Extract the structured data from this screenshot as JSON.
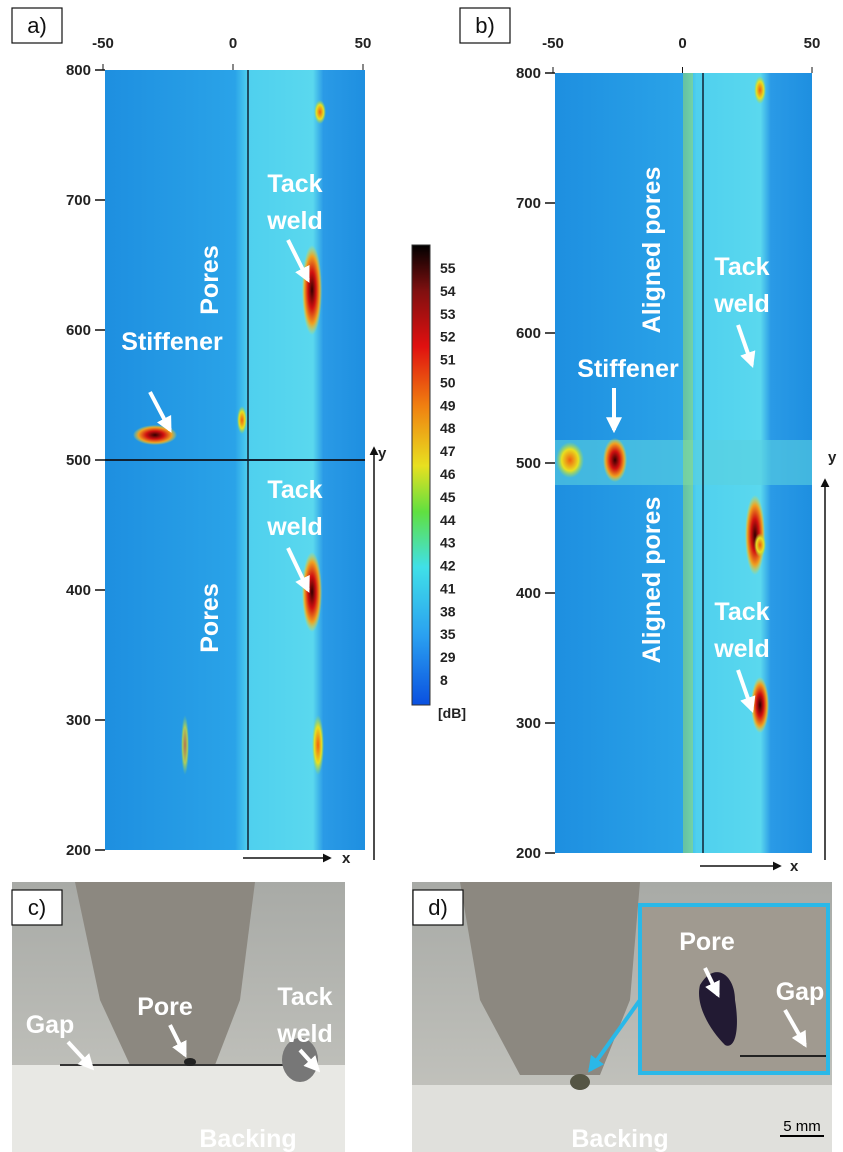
{
  "panels": [
    {
      "label": "a)",
      "x_ticks": [
        -50,
        0,
        50
      ],
      "y_ticks": [
        800,
        700,
        600,
        500,
        400,
        300,
        200
      ],
      "x_axis": "x",
      "y_axis": "y",
      "annotations": [
        {
          "lines": [
            "Tack",
            "weld"
          ]
        },
        {
          "lines": [
            "Pores"
          ]
        },
        {
          "lines": [
            "Stiffener"
          ]
        },
        {
          "lines": [
            "Tack",
            "weld"
          ]
        },
        {
          "lines": [
            "Pores"
          ]
        }
      ]
    },
    {
      "label": "b)",
      "x_ticks": [
        -50,
        0,
        50
      ],
      "y_ticks": [
        800,
        700,
        600,
        500,
        400,
        300,
        200
      ],
      "x_axis": "x",
      "y_axis": "y",
      "annotations": [
        {
          "lines": [
            "Aligned pores"
          ]
        },
        {
          "lines": [
            "Tack",
            "weld"
          ]
        },
        {
          "lines": [
            "Stiffener"
          ]
        },
        {
          "lines": [
            "Aligned pores"
          ]
        },
        {
          "lines": [
            "Tack",
            "weld"
          ]
        }
      ]
    },
    {
      "label": "c)",
      "annotations": [
        {
          "lines": [
            "Gap"
          ]
        },
        {
          "lines": [
            "Pore"
          ]
        },
        {
          "lines": [
            "Tack",
            "weld"
          ]
        },
        {
          "lines": [
            "Backing"
          ]
        }
      ]
    },
    {
      "label": "d)",
      "annotations": [
        {
          "lines": [
            "Pore"
          ]
        },
        {
          "lines": [
            "Gap"
          ]
        },
        {
          "lines": [
            "Backing"
          ]
        }
      ],
      "scale_bar": "5 mm"
    }
  ],
  "colorbar": {
    "labels": [
      55,
      54,
      53,
      52,
      51,
      50,
      49,
      48,
      47,
      46,
      45,
      44,
      43,
      42,
      41,
      38,
      35,
      29,
      8
    ],
    "unit": "[dB]"
  }
}
